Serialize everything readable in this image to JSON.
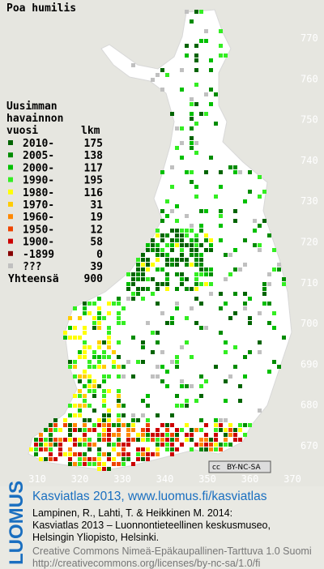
{
  "title": "Poa humilis",
  "legend": {
    "header": [
      "Uusimman",
      "havainnon",
      "vuosi"
    ],
    "count_header": "lkm",
    "items": [
      {
        "label": "2010-",
        "count": 175,
        "color": "#006400"
      },
      {
        "label": "2005-",
        "count": 138,
        "color": "#008c00"
      },
      {
        "label": "2000-",
        "count": 117,
        "color": "#00c000"
      },
      {
        "label": "1990-",
        "count": 195,
        "color": "#33ee22"
      },
      {
        "label": "1980-",
        "count": 116,
        "color": "#ffff00"
      },
      {
        "label": "1970-",
        "count": 31,
        "color": "#ffcc00"
      },
      {
        "label": "1960-",
        "count": 19,
        "color": "#ff8800"
      },
      {
        "label": "1950-",
        "count": 12,
        "color": "#ee4400"
      },
      {
        "label": "1900-",
        "count": 58,
        "color": "#cc0000"
      },
      {
        "label": "-1899",
        "count": 0,
        "color": "#880000"
      },
      {
        "label": "???",
        "count": 39,
        "color": "#c0c0c0"
      }
    ],
    "total_label": "Yhteensä",
    "total": 900
  },
  "grid": {
    "north": [
      770,
      760,
      750,
      740,
      730,
      720,
      710,
      700,
      690,
      680,
      670
    ],
    "east": [
      310,
      320,
      330,
      340,
      350,
      360,
      370
    ]
  },
  "badge": {
    "icon": "cc",
    "text": "BY-NC-SA"
  },
  "footer": {
    "logo": "LUOMUS",
    "link": "Kasviatlas 2013, www.luomus.fi/kasviatlas",
    "citation": [
      "Lampinen, R., Lahti, T. & Heikkinen M. 2014:",
      "Kasviatlas 2013 – Luonnontieteellinen keskusmuseo,",
      "Helsingin Yliopisto, Helsinki."
    ],
    "license": [
      "Creative Commons Nimeä-Epäkaupallinen-Tarttuva 1.0 Suomi",
      "http://creativecommons.org/licenses/by-nc-sa/1.0/fi"
    ]
  }
}
